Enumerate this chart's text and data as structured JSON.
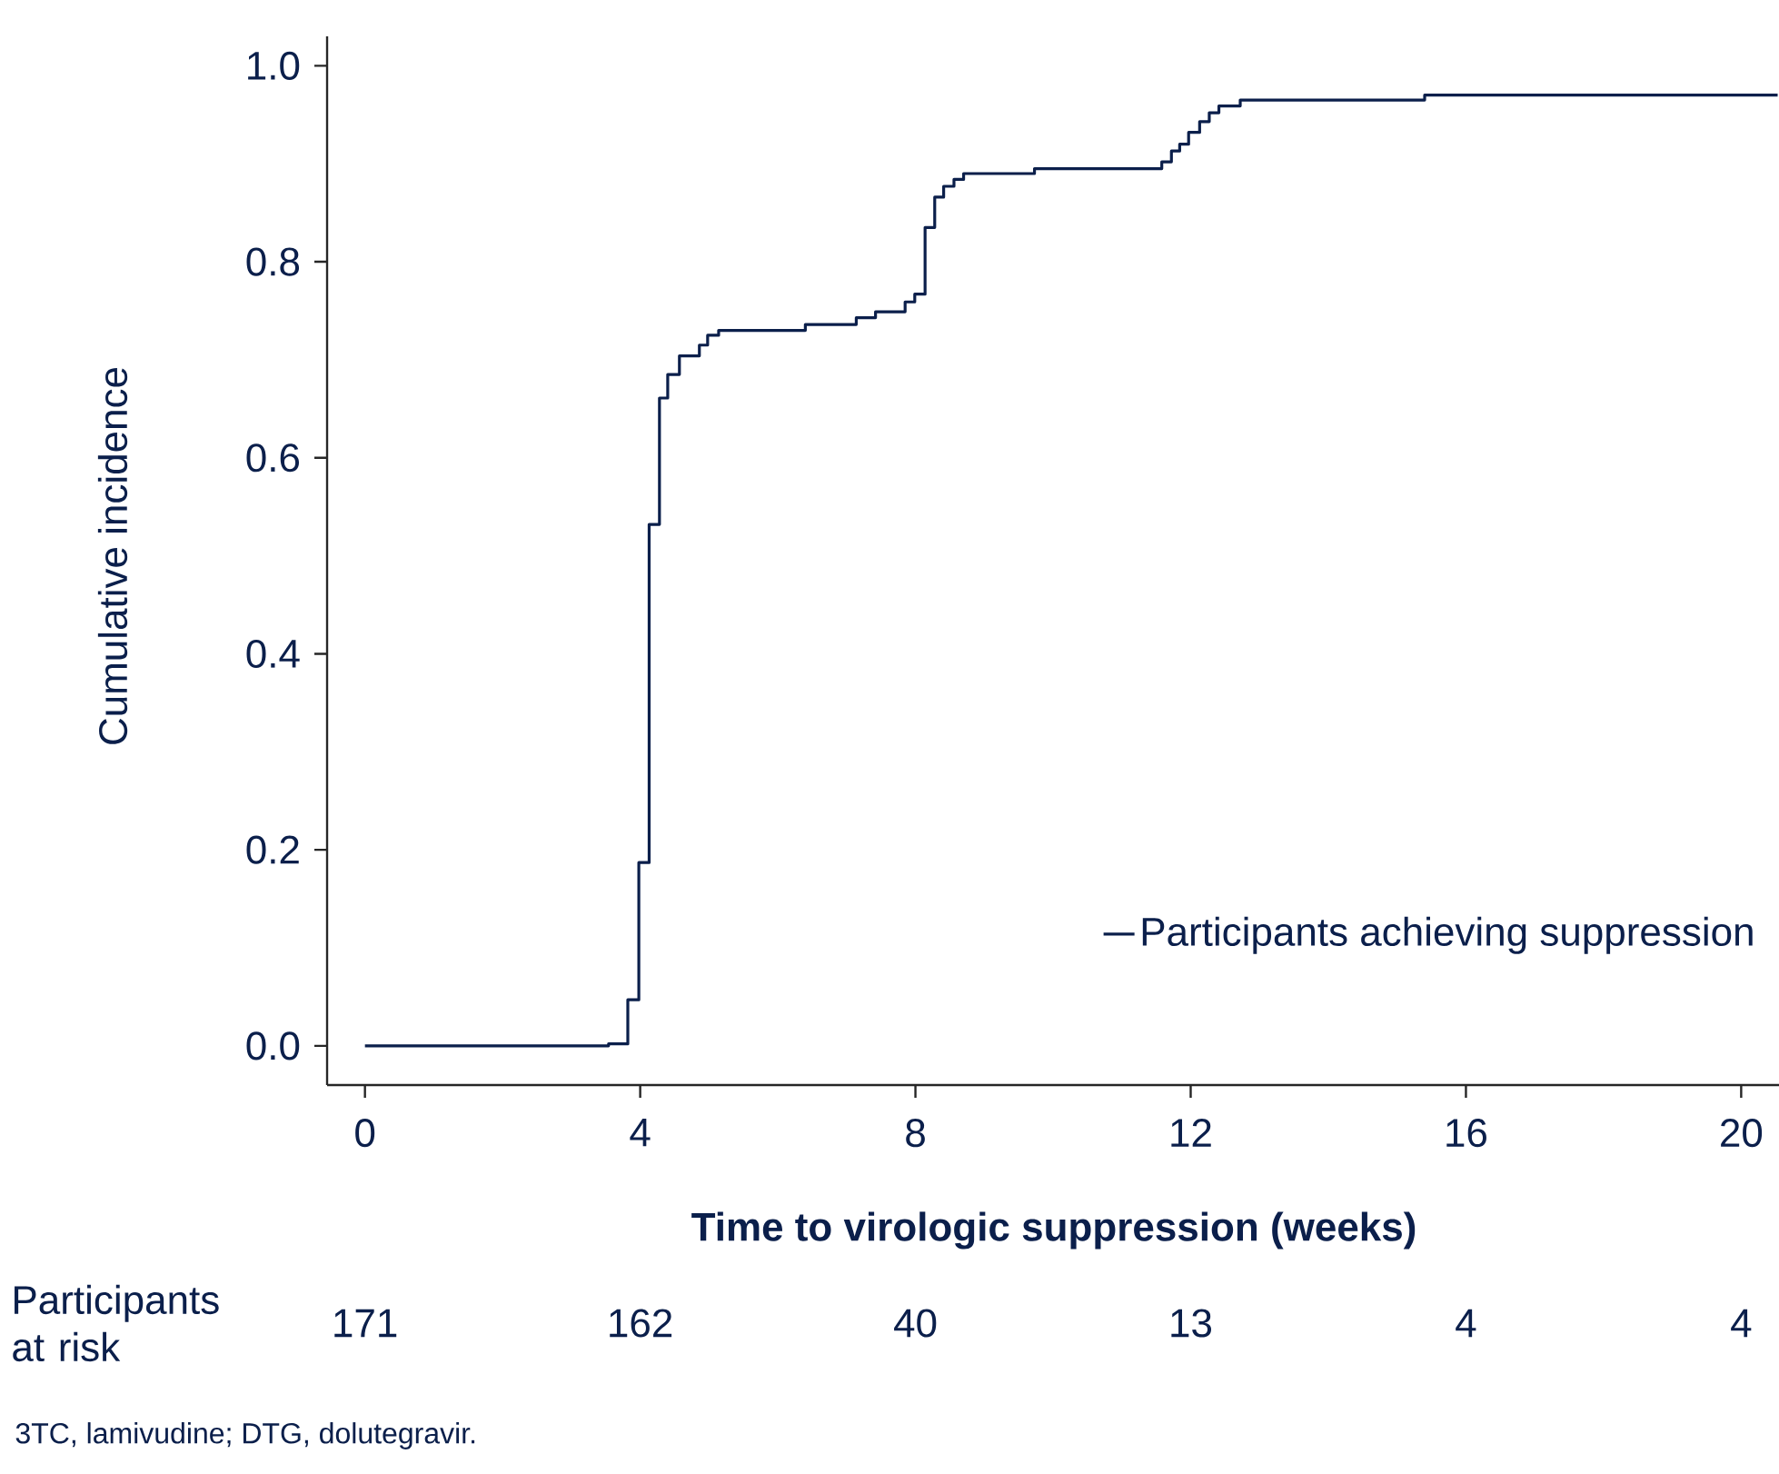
{
  "chart_data": {
    "type": "step",
    "xlabel": "Time to virologic suppression (weeks)",
    "ylabel": "Cumulative incidence",
    "series": [
      {
        "name": "Participants achieving suppression",
        "color": "#0b1f4b",
        "x": [
          0,
          3.54,
          3.82,
          3.98,
          4.13,
          4.28,
          4.4,
          4.57,
          4.86,
          4.98,
          5.14,
          6.4,
          7.14,
          7.42,
          7.85,
          7.99,
          8.14,
          8.28,
          8.41,
          8.56,
          8.7,
          9.73,
          11.58,
          11.72,
          11.84,
          11.97,
          12.13,
          12.27,
          12.41,
          12.72,
          15.4,
          20.53
        ],
        "values": [
          0,
          0.002,
          0.047,
          0.187,
          0.532,
          0.661,
          0.685,
          0.704,
          0.715,
          0.725,
          0.73,
          0.736,
          0.743,
          0.749,
          0.759,
          0.767,
          0.835,
          0.866,
          0.877,
          0.884,
          0.89,
          0.895,
          0.902,
          0.913,
          0.92,
          0.932,
          0.943,
          0.952,
          0.959,
          0.965,
          0.97,
          0.97
        ]
      }
    ],
    "xlim": [
      -0.55,
      20.55
    ],
    "ylim": [
      -0.04,
      1.03
    ],
    "xticks": [
      0,
      4,
      8,
      12,
      16,
      20
    ],
    "yticks": [
      {
        "value": 0,
        "label": "0.0"
      },
      {
        "value": 0.2,
        "label": "0.2"
      },
      {
        "value": 0.4,
        "label": "0.4"
      },
      {
        "value": 0.6,
        "label": "0.6"
      },
      {
        "value": 0.8,
        "label": "0.8"
      },
      {
        "value": 1,
        "label": "1.0"
      }
    ],
    "legend": "bottom right",
    "grid": false,
    "annotations": [
      "Participants at risk",
      "171",
      "162",
      "40",
      "13",
      "4",
      "4",
      "3TC, lamivudine; DTG, dolutegravir."
    ]
  }
}
